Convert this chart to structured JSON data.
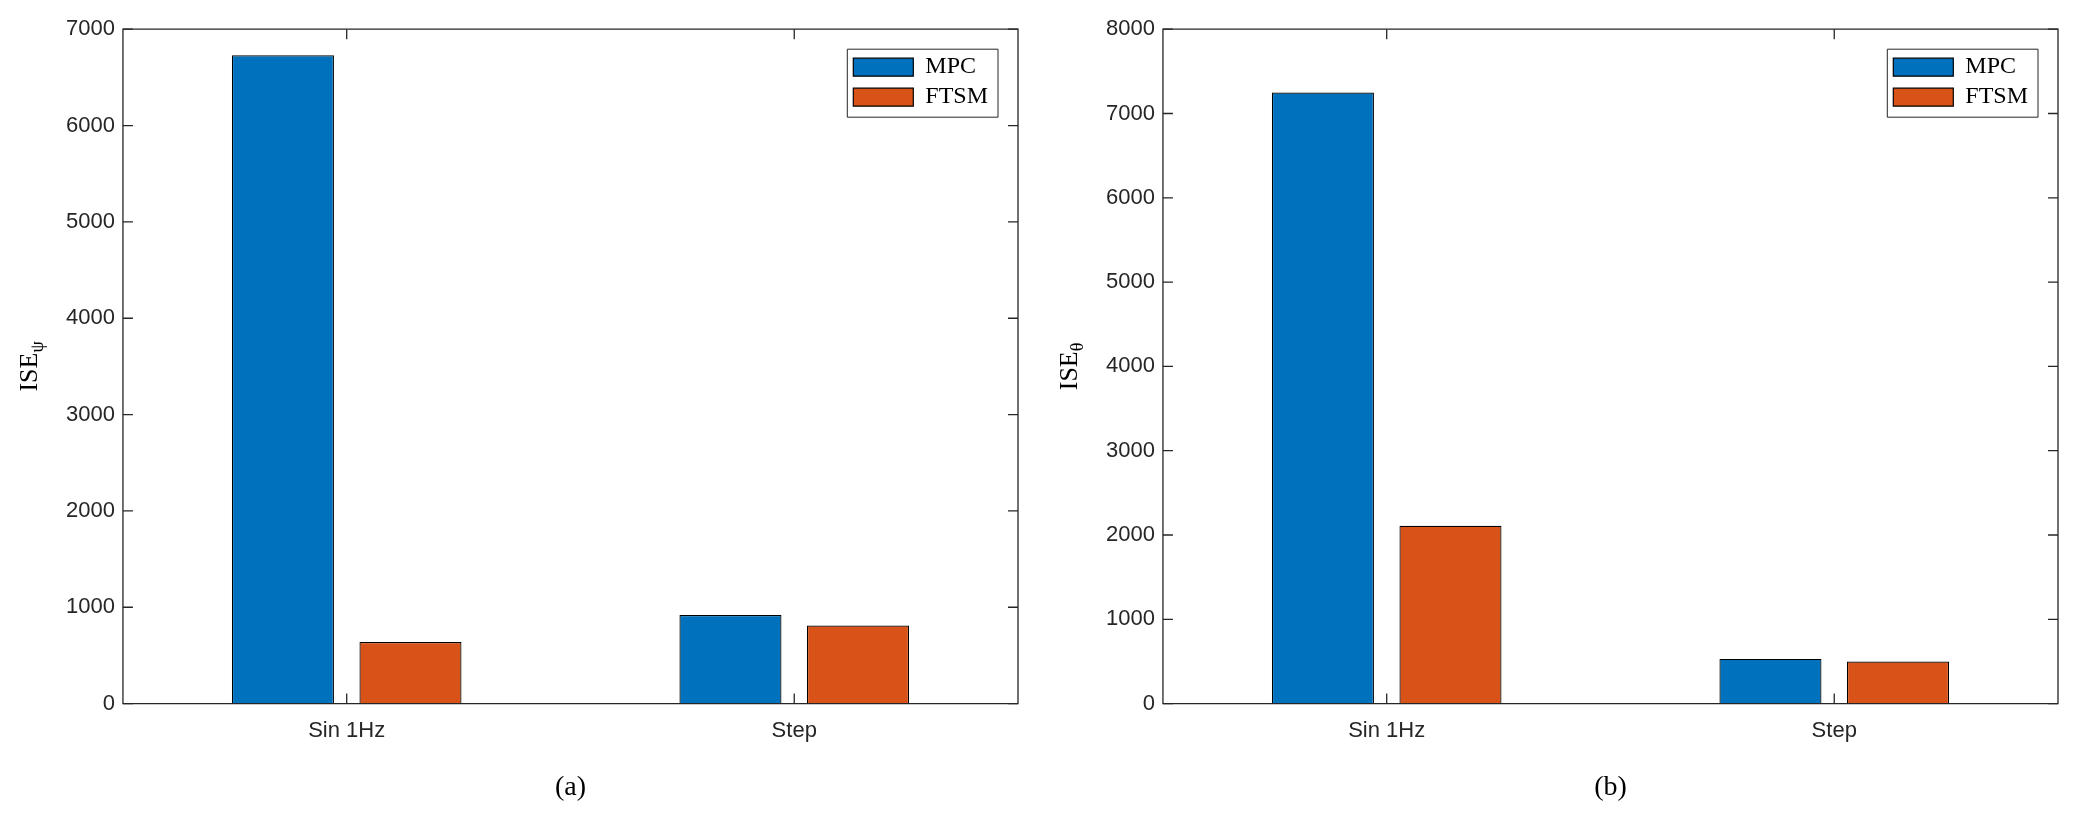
{
  "chart_data": [
    {
      "type": "bar",
      "xlabel": "(a)",
      "ylabel": "ISE$_{ψ}$",
      "categories": [
        "Sin 1Hz",
        "Step"
      ],
      "series": [
        {
          "name": "MPC",
          "color": "#0072bd",
          "values": [
            6730,
            920
          ]
        },
        {
          "name": "FTSM",
          "color": "#d95319",
          "values": [
            640,
            810
          ]
        }
      ],
      "ylim": [
        0,
        7000
      ],
      "yticks": [
        0,
        1000,
        2000,
        3000,
        4000,
        5000,
        6000,
        7000
      ],
      "grid": false,
      "legend": "top right"
    },
    {
      "type": "bar",
      "xlabel": "(b)",
      "ylabel": "ISE$_{θ}$",
      "categories": [
        "Sin 1Hz",
        "Step"
      ],
      "series": [
        {
          "name": "MPC",
          "color": "#0072bd",
          "values": [
            7250,
            530
          ]
        },
        {
          "name": "FTSM",
          "color": "#d95319",
          "values": [
            2110,
            500
          ]
        }
      ],
      "ylim": [
        0,
        8000
      ],
      "yticks": [
        0,
        1000,
        2000,
        3000,
        4000,
        5000,
        6000,
        7000,
        8000
      ],
      "grid": false,
      "legend": "top right"
    }
  ]
}
